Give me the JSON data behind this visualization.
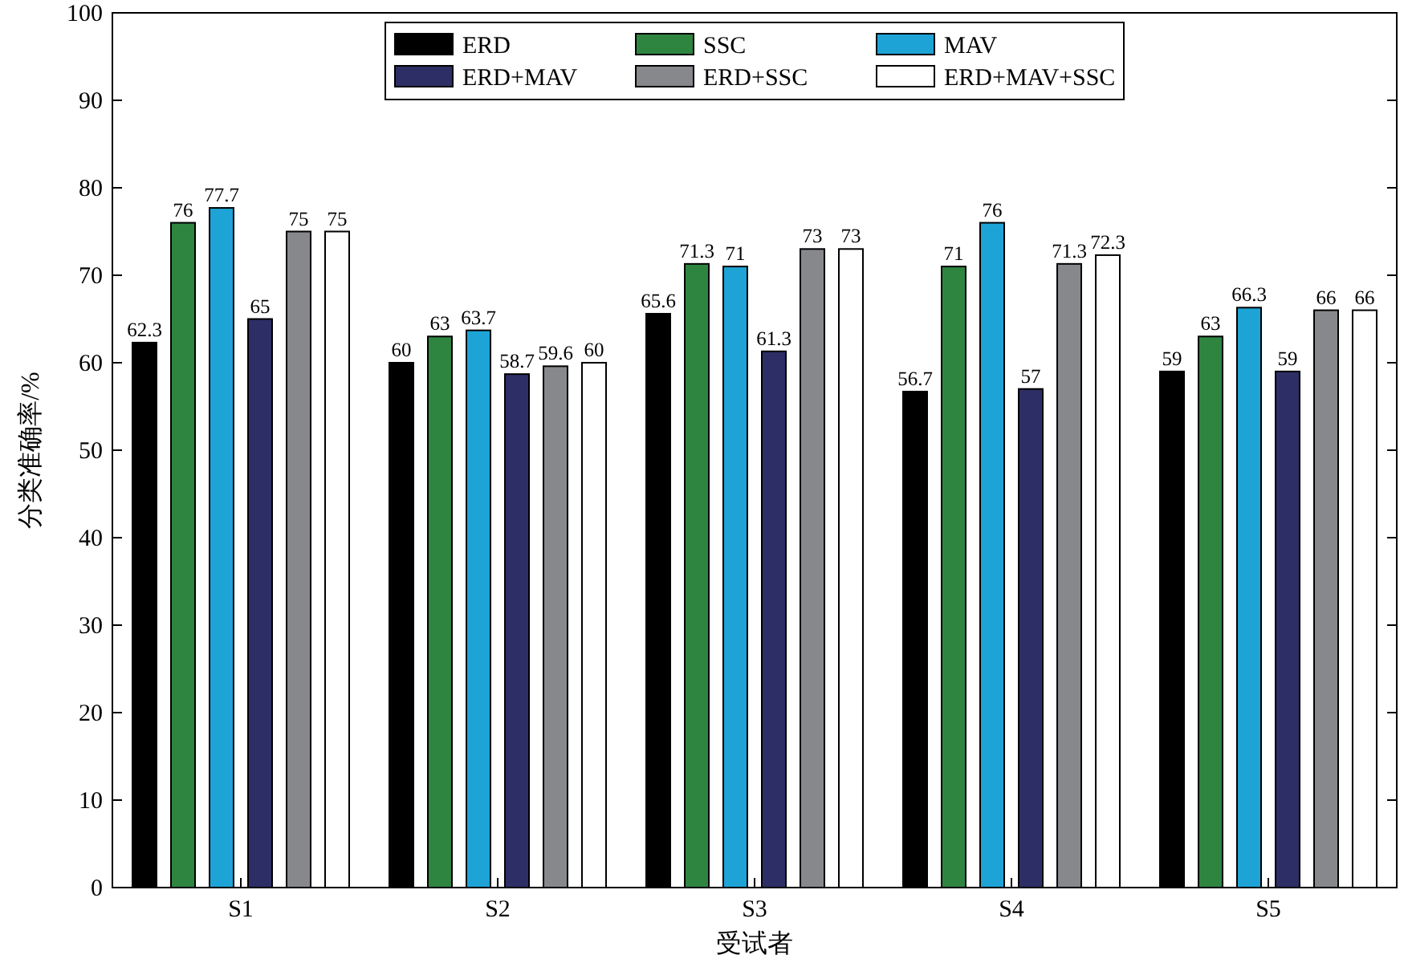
{
  "chart_data": {
    "type": "bar",
    "xlabel": "受试者",
    "ylabel": "分类准确率/%",
    "categories": [
      "S1",
      "S2",
      "S3",
      "S4",
      "S5"
    ],
    "series": [
      {
        "name": "ERD",
        "color": "#000000",
        "values": [
          62.3,
          60,
          65.6,
          56.7,
          59
        ]
      },
      {
        "name": "SSC",
        "color": "#2e8540",
        "values": [
          76,
          63,
          71.3,
          71,
          63
        ]
      },
      {
        "name": "MAV",
        "color": "#1ea3d6",
        "values": [
          77.7,
          63.7,
          71,
          76,
          66.3
        ]
      },
      {
        "name": "ERD+MAV",
        "color": "#2e2e66",
        "values": [
          65,
          58.7,
          61.3,
          57,
          59
        ]
      },
      {
        "name": "ERD+SSC",
        "color": "#87888c",
        "values": [
          75,
          59.6,
          73,
          71.3,
          66
        ]
      },
      {
        "name": "ERD+MAV+SSC",
        "color": "#ffffff",
        "values": [
          75,
          60,
          73,
          72.3,
          66
        ]
      }
    ],
    "ylim": [
      0,
      100
    ],
    "yticks": [
      0,
      10,
      20,
      30,
      40,
      50,
      60,
      70,
      80,
      90,
      100
    ],
    "data_labels": true,
    "legend": "top",
    "grid": false
  }
}
